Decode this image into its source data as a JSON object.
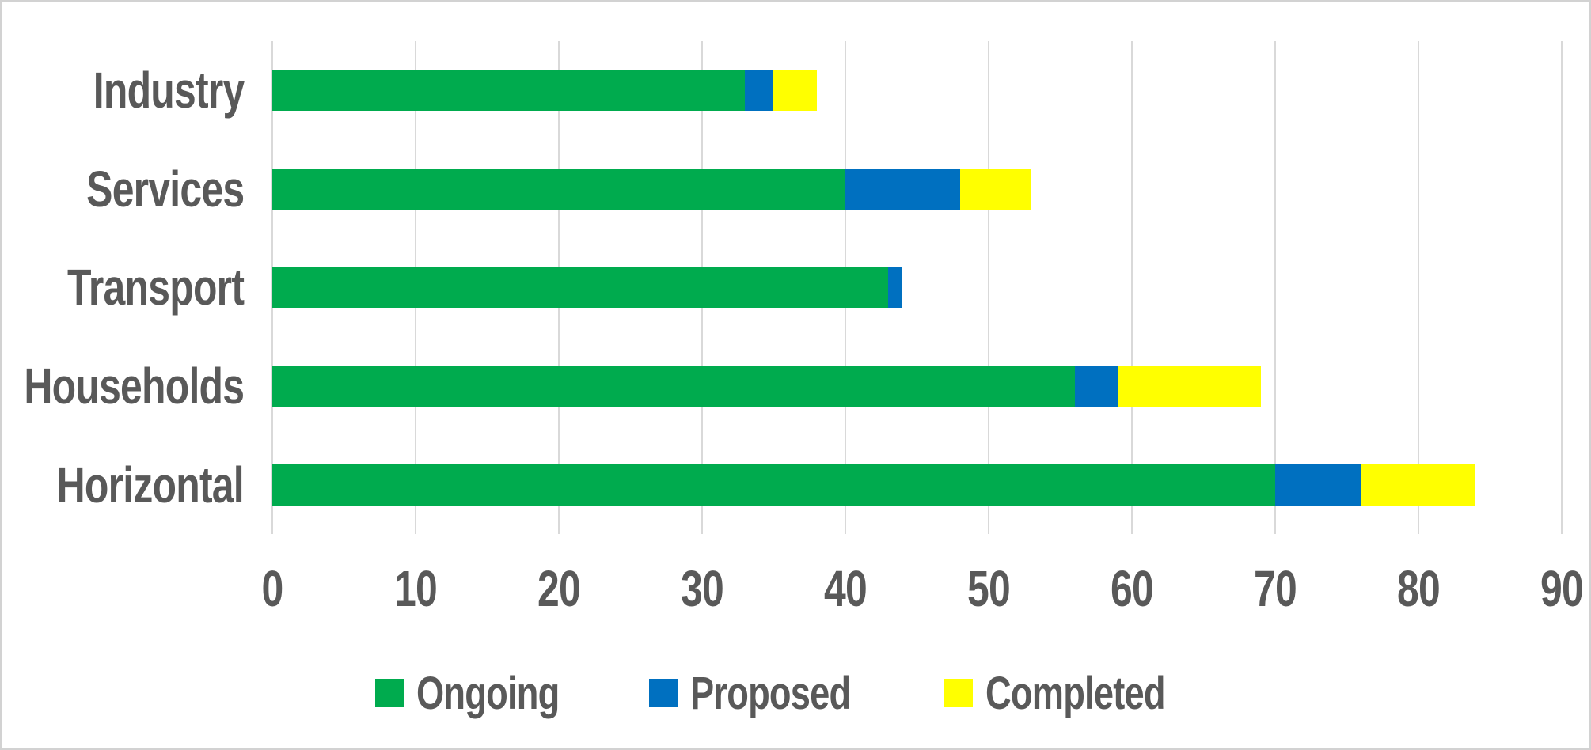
{
  "chart_data": {
    "type": "bar",
    "orientation": "horizontal",
    "stacked": true,
    "title": "",
    "xlabel": "",
    "ylabel": "",
    "categories": [
      "Industry",
      "Services",
      "Transport",
      "Households",
      "Horizontal"
    ],
    "series": [
      {
        "name": "Ongoing",
        "color": "#00AB4E",
        "values": [
          33,
          40,
          43,
          56,
          70
        ]
      },
      {
        "name": "Proposed",
        "color": "#0070C0",
        "values": [
          2,
          8,
          1,
          3,
          6
        ]
      },
      {
        "name": "Completed",
        "color": "#FFFF00",
        "values": [
          3,
          5,
          0,
          10,
          8
        ]
      }
    ],
    "totals": [
      38,
      53,
      44,
      69,
      84
    ],
    "xlim": [
      0,
      90
    ],
    "xticks": [
      0,
      10,
      20,
      30,
      40,
      50,
      60,
      70,
      80,
      90
    ],
    "xtick_labels": [
      "0",
      "10",
      "20",
      "30",
      "40",
      "50",
      "60",
      "70",
      "80",
      "90"
    ],
    "grid": true,
    "gridline_color": "#D9D9D9",
    "legend_position": "bottom",
    "legend_labels": [
      "Ongoing",
      "Proposed",
      "Completed"
    ],
    "text_color": "#595959",
    "background_color": "#FFFFFF",
    "border_color": "#D2D2D2"
  }
}
